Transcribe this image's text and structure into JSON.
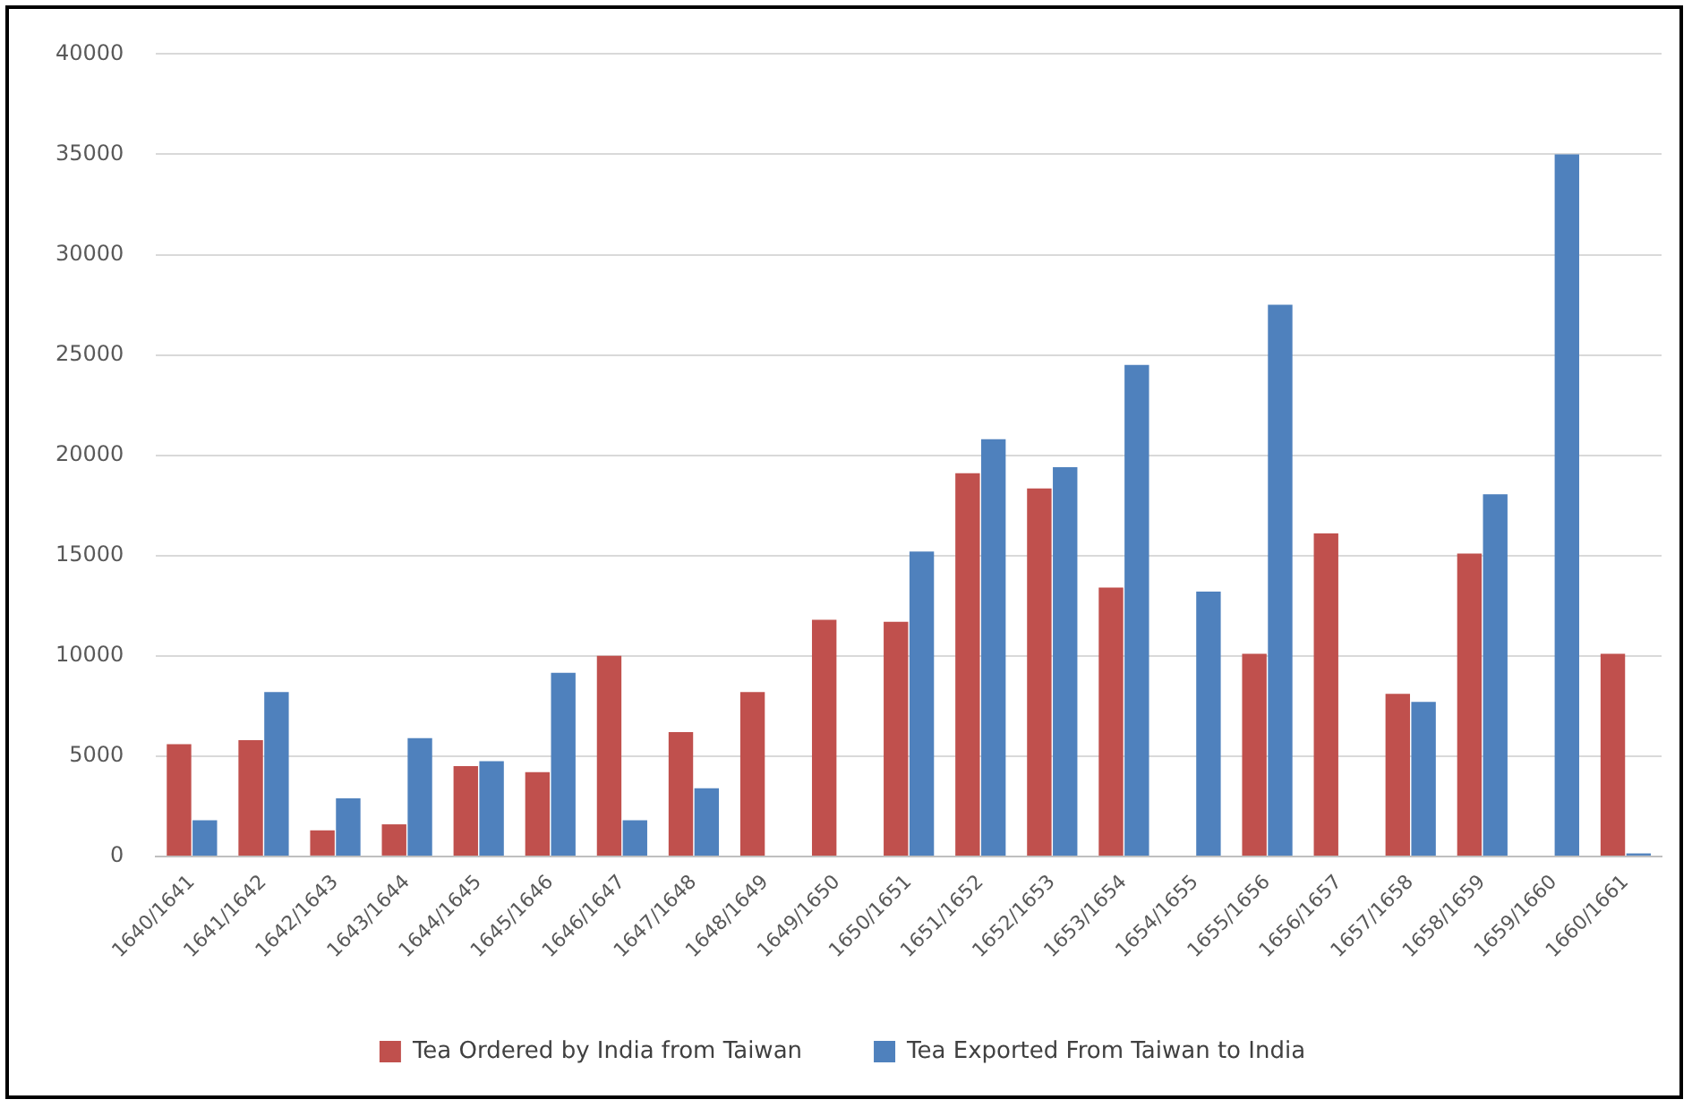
{
  "chart_data": {
    "type": "bar",
    "categories": [
      "1640/1641",
      "1641/1642",
      "1642/1643",
      "1643/1644",
      "1644/1645",
      "1645/1646",
      "1646/1647",
      "1647/1648",
      "1648/1649",
      "1649/1650",
      "1650/1651",
      "1651/1652",
      "1652/1653",
      "1653/1654",
      "1654/1655",
      "1655/1656",
      "1656/1657",
      "1657/1658",
      "1658/1659",
      "1659/1660",
      "1660/1661"
    ],
    "series": [
      {
        "name": "Tea Ordered by India from Taiwan",
        "color": "#c0504d",
        "values": [
          5600,
          5800,
          1300,
          1600,
          4500,
          4200,
          10000,
          6200,
          8200,
          11800,
          11700,
          19100,
          18350,
          13400,
          null,
          10100,
          16100,
          8100,
          15100,
          null,
          10100
        ]
      },
      {
        "name": "Tea Exported From Taiwan to India",
        "color": "#4f81bd",
        "values": [
          1800,
          8200,
          2900,
          5900,
          4750,
          9150,
          1800,
          3400,
          null,
          null,
          15200,
          20800,
          19400,
          24500,
          13200,
          27500,
          null,
          7700,
          18050,
          35000,
          150
        ]
      }
    ],
    "ylim": [
      0,
      40000
    ],
    "yticks": [
      0,
      5000,
      10000,
      15000,
      20000,
      25000,
      30000,
      35000,
      40000
    ],
    "grid": "y",
    "legend": "bottom"
  }
}
